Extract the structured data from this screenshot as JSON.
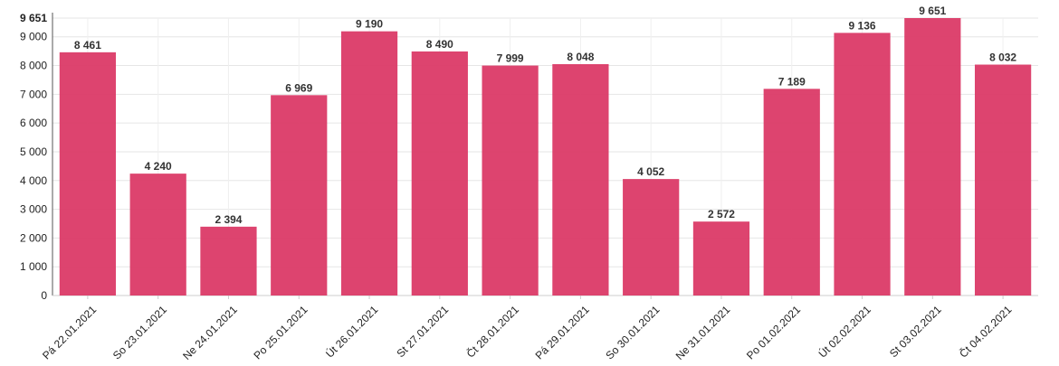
{
  "chart_data": {
    "type": "bar",
    "title": "",
    "xlabel": "",
    "ylabel": "",
    "categories": [
      "Pá 22.01.2021",
      "So 23.01.2021",
      "Ne 24.01.2021",
      "Po 25.01.2021",
      "Út 26.01.2021",
      "St 27.01.2021",
      "Čt 28.01.2021",
      "Pá 29.01.2021",
      "So 30.01.2021",
      "Ne 31.01.2021",
      "Po 01.02.2021",
      "Út 02.02.2021",
      "St 03.02.2021",
      "Čt 04.02.2021"
    ],
    "values": [
      8461,
      4240,
      2394,
      6969,
      9190,
      8490,
      7999,
      8048,
      4052,
      2572,
      7189,
      9136,
      9651,
      8032
    ],
    "value_labels": [
      "8 461",
      "4 240",
      "2 394",
      "6 969",
      "9 190",
      "8 490",
      "7 999",
      "8 048",
      "4 052",
      "2 572",
      "7 189",
      "9 136",
      "9 651",
      "8 032"
    ],
    "ylim": [
      0,
      9651
    ],
    "y_ticks": [
      0,
      1000,
      2000,
      3000,
      4000,
      5000,
      6000,
      7000,
      8000,
      9000
    ],
    "y_tick_labels": [
      "0",
      "1 000",
      "2 000",
      "3 000",
      "4 000",
      "5 000",
      "6 000",
      "7 000",
      "8 000",
      "9 000"
    ],
    "y_max_label": "9 651",
    "grid": true,
    "legend": "none",
    "bar_color": "#db3a67"
  }
}
